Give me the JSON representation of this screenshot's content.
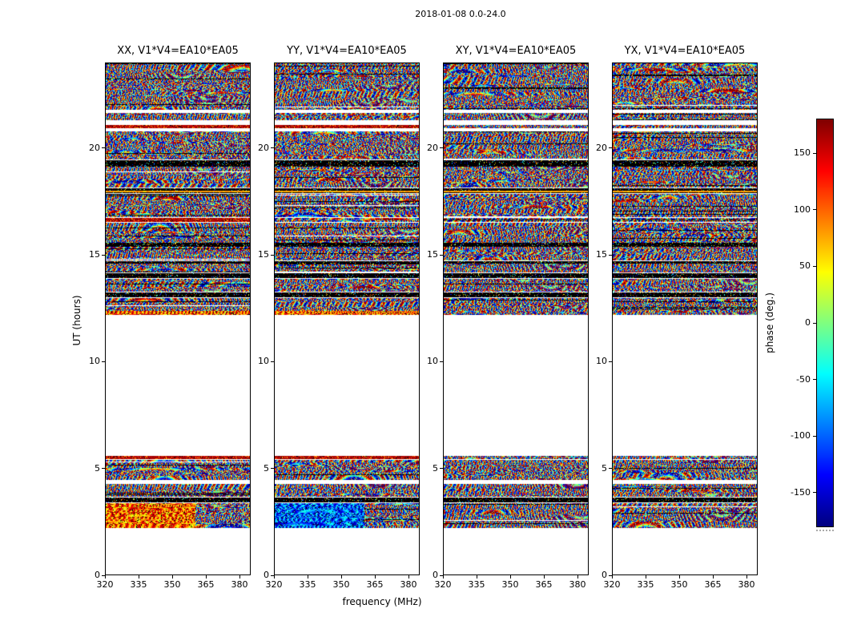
{
  "figure_title": "2018-01-08 0.0-24.0",
  "chart_data": {
    "type": "heatmap",
    "description": "Phase vs frequency/time waterfall plots for four polarization products of baseline V1*V4=EA10*EA05; white regions are times with no data, black rows are flagged data.",
    "panels": [
      {
        "id": "XX",
        "title": "XX, V1*V4=EA10*EA05"
      },
      {
        "id": "YY",
        "title": "YY, V1*V4=EA10*EA05"
      },
      {
        "id": "XY",
        "title": "XY, V1*V4=EA10*EA05"
      },
      {
        "id": "YX",
        "title": "YX, V1*V4=EA10*EA05"
      }
    ],
    "xlabel": "frequency (MHz)",
    "ylabel": "UT (hours)",
    "x_range": [
      320,
      385
    ],
    "x_ticks": [
      320,
      335,
      350,
      365,
      380
    ],
    "y_range": [
      0,
      24
    ],
    "y_ticks": [
      0,
      5,
      10,
      15,
      20
    ],
    "colorbar": {
      "label": "phase (deg.)",
      "range": [
        -180,
        180
      ],
      "ticks": [
        150,
        100,
        50,
        0,
        -50,
        -100,
        -150
      ],
      "colormap": "jet"
    },
    "data_gaps_ut": [
      [
        0.0,
        2.2
      ],
      [
        4.25,
        4.45
      ],
      [
        5.6,
        12.2
      ],
      [
        20.8,
        20.95
      ],
      [
        21.12,
        21.34
      ],
      [
        21.66,
        21.82
      ]
    ],
    "bands": [
      {
        "ut": [
          2.2,
          3.35
        ],
        "style": [
          "warm",
          "cool",
          "noise",
          "noise"
        ],
        "split": 0.62
      },
      {
        "ut": [
          3.38,
          3.62
        ],
        "style": "dark"
      },
      {
        "ut": [
          3.65,
          4.25
        ],
        "style": "noise"
      },
      {
        "ut": [
          4.45,
          5.38
        ],
        "style": "noise"
      },
      {
        "ut": [
          5.4,
          5.58
        ],
        "style": [
          "redline",
          "redline",
          "noise",
          "noise"
        ]
      },
      {
        "ut": [
          12.2,
          12.38
        ],
        "style": [
          "warm",
          "warm",
          "noise",
          "noise"
        ]
      },
      {
        "ut": [
          12.38,
          12.98
        ],
        "style": "noise"
      },
      {
        "ut": [
          13.0,
          13.25
        ],
        "style": "dark"
      },
      {
        "ut": [
          13.27,
          13.88
        ],
        "style": "noise"
      },
      {
        "ut": [
          13.9,
          14.15
        ],
        "style": "dark"
      },
      {
        "ut": [
          14.17,
          14.58
        ],
        "style": "noise"
      },
      {
        "ut": [
          14.6,
          14.72
        ],
        "style": "dark"
      },
      {
        "ut": [
          14.74,
          15.38
        ],
        "style": "noise"
      },
      {
        "ut": [
          15.4,
          15.56
        ],
        "style": "dark"
      },
      {
        "ut": [
          15.58,
          16.53
        ],
        "style": "noise"
      },
      {
        "ut": [
          16.55,
          16.75
        ],
        "style": [
          "redline",
          "noise",
          "noise",
          "noise"
        ]
      },
      {
        "ut": [
          16.77,
          17.88
        ],
        "style": "noise"
      },
      {
        "ut": [
          17.9,
          18.15
        ],
        "style": "dark_yellow"
      },
      {
        "ut": [
          18.17,
          19.13
        ],
        "style": "noise"
      },
      {
        "ut": [
          19.15,
          19.45
        ],
        "style": "dark"
      },
      {
        "ut": [
          19.47,
          20.8
        ],
        "style": "noise"
      },
      {
        "ut": [
          20.95,
          21.12
        ],
        "style": [
          "redline",
          "redline",
          "noise",
          "noise"
        ]
      },
      {
        "ut": [
          21.34,
          21.66
        ],
        "style": "noise"
      },
      {
        "ut": [
          21.82,
          24.0
        ],
        "style": "noise"
      }
    ]
  }
}
